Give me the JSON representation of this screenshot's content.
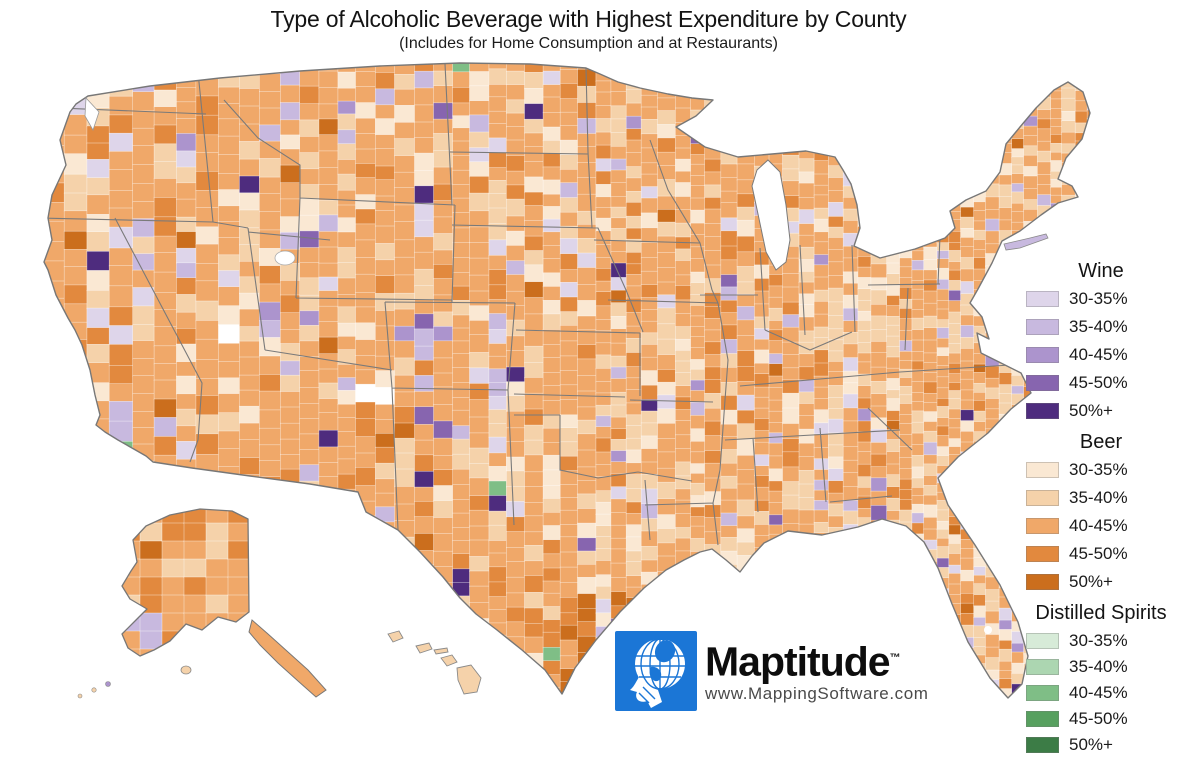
{
  "title": "Type of Alcoholic Beverage with Highest Expenditure by County",
  "subtitle": "(Includes for Home Consumption and at Restaurants)",
  "legend": {
    "groups": [
      {
        "name": "Wine",
        "items": [
          {
            "label": "30-35%",
            "color": "#DED5EA"
          },
          {
            "label": "35-40%",
            "color": "#C8B9DF"
          },
          {
            "label": "40-45%",
            "color": "#AC94CD"
          },
          {
            "label": "45-50%",
            "color": "#8765AF"
          },
          {
            "label": "50%+",
            "color": "#4E2C7E"
          }
        ]
      },
      {
        "name": "Beer",
        "items": [
          {
            "label": "30-35%",
            "color": "#FAE8D3"
          },
          {
            "label": "35-40%",
            "color": "#F5D2AA"
          },
          {
            "label": "40-45%",
            "color": "#F0A869"
          },
          {
            "label": "45-50%",
            "color": "#E2893E"
          },
          {
            "label": "50%+",
            "color": "#CB6E1D"
          }
        ]
      },
      {
        "name": "Distilled Spirits",
        "items": [
          {
            "label": "30-35%",
            "color": "#D7EBD8"
          },
          {
            "label": "35-40%",
            "color": "#ACD6B1"
          },
          {
            "label": "40-45%",
            "color": "#7FBE86"
          },
          {
            "label": "45-50%",
            "color": "#57A05F"
          },
          {
            "label": "50%+",
            "color": "#3C7C46"
          }
        ]
      }
    ]
  },
  "map": {
    "type": "choropleth",
    "region": "United States counties (incl. Alaska and Hawaii)",
    "dominant_category": "Beer 40-45%",
    "state_border_color": "#7A7A7A",
    "county_border_color": "#FFFFFF",
    "no_data_color": "#FFFFFF",
    "notable_features": [
      "Most counties shaded beer (orange), heaviest 45-50%/50%+ in south and west Texas",
      "Wine (purple) counties scattered through mountain west, Colorado and coastal metros",
      "Rare distilled-spirits (green) counties in Texas",
      "A few white no-data counties in the Four Corners area"
    ]
  },
  "logo": {
    "brand": "Maptitude",
    "trademark": "™",
    "url_text": "www.MappingSoftware.com",
    "square_color": "#1B76D6"
  }
}
